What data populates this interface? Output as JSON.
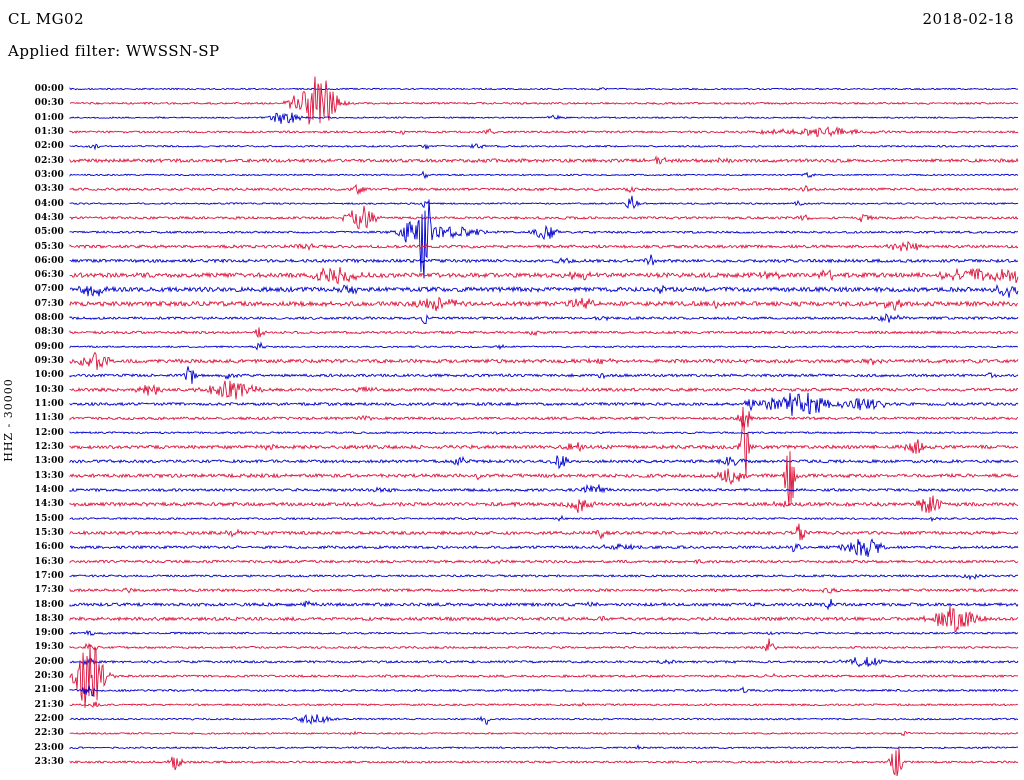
{
  "header": {
    "station": "CL MG02",
    "date": "2018-02-18",
    "filter_label": "Applied filter: WWSSN-SP"
  },
  "y_axis_label": "HHZ - 30000",
  "colors": {
    "blue": "#0000CC",
    "red": "#DC143C",
    "text": "#000000",
    "background": "#FFFFFF"
  },
  "chart_data": {
    "type": "line",
    "title": "Helicorder day plot, station CL MG02, channel HHZ, 2018-02-18, filter WWSSN-SP, scale 30000",
    "xlabel": "",
    "ylabel": "HHZ - 30000",
    "row_duration_minutes": 30,
    "rows_total": 48,
    "grid": false,
    "legend": "none",
    "event_format": [
      "position_fraction_along_row",
      "amplitude_px",
      "width_px"
    ],
    "rows": [
      {
        "label": "00:00",
        "color": "blue",
        "noise": 0.7,
        "events": [
          [
            0.56,
            1.5,
            4
          ]
        ]
      },
      {
        "label": "00:30",
        "color": "red",
        "noise": 0.9,
        "events": [
          [
            0.262,
            30,
            12
          ],
          [
            0.235,
            5,
            5
          ]
        ]
      },
      {
        "label": "01:00",
        "color": "blue",
        "noise": 0.7,
        "events": [
          [
            0.227,
            8,
            9
          ],
          [
            0.512,
            2,
            5
          ]
        ]
      },
      {
        "label": "01:30",
        "color": "red",
        "noise": 1.0,
        "events": [
          [
            0.443,
            3.5,
            4
          ],
          [
            0.79,
            4,
            35
          ],
          [
            0.35,
            2,
            6
          ]
        ]
      },
      {
        "label": "02:00",
        "color": "blue",
        "noise": 0.8,
        "events": [
          [
            0.026,
            2.5,
            4
          ],
          [
            0.374,
            3,
            3
          ],
          [
            0.43,
            2.5,
            5
          ]
        ]
      },
      {
        "label": "02:30",
        "color": "red",
        "noise": 1.6,
        "events": [
          [
            0.62,
            2.5,
            8
          ],
          [
            0.69,
            2,
            6
          ],
          [
            0.45,
            2,
            6
          ]
        ]
      },
      {
        "label": "03:00",
        "color": "blue",
        "noise": 0.7,
        "events": [
          [
            0.374,
            4,
            2
          ],
          [
            0.78,
            2.5,
            4
          ]
        ]
      },
      {
        "label": "03:30",
        "color": "red",
        "noise": 1.2,
        "events": [
          [
            0.306,
            7,
            4
          ],
          [
            0.59,
            2.5,
            5
          ],
          [
            0.775,
            4,
            3
          ]
        ]
      },
      {
        "label": "04:00",
        "color": "blue",
        "noise": 0.8,
        "events": [
          [
            0.593,
            7,
            4
          ],
          [
            0.374,
            5,
            2
          ],
          [
            0.77,
            2.5,
            4
          ]
        ]
      },
      {
        "label": "04:30",
        "color": "red",
        "noise": 1.2,
        "events": [
          [
            0.306,
            14,
            9
          ],
          [
            0.838,
            5,
            5
          ],
          [
            0.775,
            3,
            4
          ]
        ]
      },
      {
        "label": "05:00",
        "color": "blue",
        "noise": 1.0,
        "events": [
          [
            0.357,
            10,
            8
          ],
          [
            0.374,
            90,
            3
          ],
          [
            0.4,
            5,
            25
          ],
          [
            0.501,
            9,
            8
          ]
        ]
      },
      {
        "label": "05:30",
        "color": "red",
        "noise": 1.4,
        "events": [
          [
            0.374,
            3,
            3
          ],
          [
            0.881,
            4.5,
            12
          ],
          [
            0.25,
            2.5,
            8
          ]
        ]
      },
      {
        "label": "06:00",
        "color": "blue",
        "noise": 1.5,
        "events": [
          [
            0.29,
            3,
            6
          ],
          [
            0.612,
            5,
            3
          ],
          [
            0.52,
            2.5,
            6
          ]
        ]
      },
      {
        "label": "06:30",
        "color": "red",
        "noise": 2.2,
        "events": [
          [
            0.28,
            9,
            14
          ],
          [
            0.538,
            4,
            10
          ],
          [
            0.74,
            4,
            8
          ],
          [
            0.8,
            4,
            8
          ],
          [
            0.95,
            6,
            25
          ],
          [
            1.0,
            7,
            12
          ]
        ]
      },
      {
        "label": "07:00",
        "color": "blue",
        "noise": 2.2,
        "events": [
          [
            0.026,
            7,
            9
          ],
          [
            0.295,
            4,
            8
          ],
          [
            0.62,
            3,
            8
          ],
          [
            0.99,
            7,
            10
          ]
        ]
      },
      {
        "label": "07:30",
        "color": "red",
        "noise": 2.2,
        "events": [
          [
            0.385,
            6,
            16
          ],
          [
            0.538,
            6,
            9
          ],
          [
            0.87,
            6,
            8
          ],
          [
            0.68,
            3,
            6
          ]
        ]
      },
      {
        "label": "08:00",
        "color": "blue",
        "noise": 1.2,
        "events": [
          [
            0.374,
            9,
            2
          ],
          [
            0.865,
            4,
            9
          ],
          [
            0.56,
            2.5,
            6
          ]
        ]
      },
      {
        "label": "08:30",
        "color": "red",
        "noise": 1.2,
        "events": [
          [
            0.2,
            5,
            4
          ],
          [
            0.49,
            2,
            5
          ]
        ]
      },
      {
        "label": "09:00",
        "color": "blue",
        "noise": 0.8,
        "events": [
          [
            0.2,
            5,
            3
          ],
          [
            0.454,
            2.5,
            4
          ]
        ]
      },
      {
        "label": "09:30",
        "color": "red",
        "noise": 1.8,
        "events": [
          [
            0.026,
            8,
            11
          ],
          [
            0.56,
            3,
            8
          ],
          [
            0.85,
            3,
            6
          ]
        ]
      },
      {
        "label": "10:00",
        "color": "blue",
        "noise": 1.3,
        "events": [
          [
            0.127,
            10,
            4
          ],
          [
            0.169,
            3,
            6
          ],
          [
            0.56,
            3,
            3
          ],
          [
            0.97,
            3,
            5
          ]
        ]
      },
      {
        "label": "10:30",
        "color": "red",
        "noise": 1.5,
        "events": [
          [
            0.084,
            6,
            8
          ],
          [
            0.169,
            10,
            16
          ],
          [
            0.31,
            3,
            8
          ]
        ]
      },
      {
        "label": "11:00",
        "color": "blue",
        "noise": 1.4,
        "events": [
          [
            0.717,
            5,
            4
          ],
          [
            0.77,
            12,
            22
          ],
          [
            0.84,
            6,
            13
          ]
        ]
      },
      {
        "label": "11:30",
        "color": "red",
        "noise": 1.3,
        "events": [
          [
            0.712,
            14,
            4
          ],
          [
            0.31,
            2.5,
            6
          ]
        ]
      },
      {
        "label": "12:00",
        "color": "blue",
        "noise": 0.9,
        "events": [
          [
            0.45,
            1.5,
            5
          ]
        ]
      },
      {
        "label": "12:30",
        "color": "red",
        "noise": 1.7,
        "events": [
          [
            0.533,
            4,
            6
          ],
          [
            0.712,
            42,
            3
          ],
          [
            0.891,
            9,
            6
          ],
          [
            0.21,
            2.5,
            6
          ]
        ]
      },
      {
        "label": "13:00",
        "color": "blue",
        "noise": 1.4,
        "events": [
          [
            0.411,
            5,
            5
          ],
          [
            0.517,
            7,
            6
          ],
          [
            0.696,
            5,
            8
          ]
        ]
      },
      {
        "label": "13:30",
        "color": "red",
        "noise": 1.7,
        "events": [
          [
            0.696,
            11,
            8
          ],
          [
            0.759,
            45,
            3
          ],
          [
            0.43,
            3,
            6
          ]
        ]
      },
      {
        "label": "14:00",
        "color": "blue",
        "noise": 1.3,
        "events": [
          [
            0.554,
            7,
            7
          ],
          [
            0.33,
            2.5,
            6
          ]
        ]
      },
      {
        "label": "14:30",
        "color": "red",
        "noise": 1.8,
        "events": [
          [
            0.538,
            8,
            8
          ],
          [
            0.907,
            9,
            8
          ],
          [
            0.75,
            3,
            6
          ]
        ]
      },
      {
        "label": "15:00",
        "color": "blue",
        "noise": 0.9,
        "events": [
          [
            0.52,
            2,
            5
          ],
          [
            0.91,
            2,
            4
          ]
        ]
      },
      {
        "label": "15:30",
        "color": "red",
        "noise": 1.6,
        "events": [
          [
            0.17,
            3,
            6
          ],
          [
            0.559,
            5,
            4
          ],
          [
            0.77,
            11,
            3
          ]
        ]
      },
      {
        "label": "16:00",
        "color": "blue",
        "noise": 1.3,
        "events": [
          [
            0.58,
            4,
            13
          ],
          [
            0.765,
            7,
            3
          ],
          [
            0.838,
            11,
            12
          ]
        ]
      },
      {
        "label": "16:30",
        "color": "red",
        "noise": 1.3,
        "events": [
          [
            0.664,
            3,
            4
          ],
          [
            0.45,
            2,
            6
          ]
        ]
      },
      {
        "label": "17:00",
        "color": "blue",
        "noise": 1.0,
        "events": [
          [
            0.949,
            3,
            6
          ]
        ]
      },
      {
        "label": "17:30",
        "color": "red",
        "noise": 1.3,
        "events": [
          [
            0.063,
            2.5,
            5
          ],
          [
            0.802,
            3,
            5
          ]
        ]
      },
      {
        "label": "18:00",
        "color": "blue",
        "noise": 1.5,
        "events": [
          [
            0.25,
            2.5,
            6
          ],
          [
            0.55,
            2.5,
            6
          ],
          [
            0.802,
            6,
            3
          ]
        ]
      },
      {
        "label": "18:30",
        "color": "red",
        "noise": 1.6,
        "events": [
          [
            0.934,
            14,
            14
          ],
          [
            0.56,
            3,
            6
          ]
        ]
      },
      {
        "label": "19:00",
        "color": "blue",
        "noise": 0.9,
        "events": [
          [
            0.021,
            4,
            3
          ],
          [
            0.74,
            2,
            4
          ]
        ]
      },
      {
        "label": "19:30",
        "color": "red",
        "noise": 1.0,
        "events": [
          [
            0.021,
            6,
            4
          ],
          [
            0.738,
            10,
            3
          ]
        ]
      },
      {
        "label": "20:00",
        "color": "blue",
        "noise": 1.1,
        "events": [
          [
            0.021,
            6,
            4
          ],
          [
            0.838,
            5,
            14
          ],
          [
            0.63,
            2,
            5
          ]
        ]
      },
      {
        "label": "20:30",
        "color": "red",
        "noise": 1.1,
        "events": [
          [
            0.021,
            38,
            9
          ],
          [
            0.74,
            2.5,
            4
          ]
        ]
      },
      {
        "label": "21:00",
        "color": "blue",
        "noise": 1.0,
        "events": [
          [
            0.021,
            7,
            5
          ],
          [
            0.712,
            4,
            3
          ]
        ]
      },
      {
        "label": "21:30",
        "color": "red",
        "noise": 0.9,
        "events": [
          [
            0.026,
            4,
            3
          ],
          [
            0.54,
            1.5,
            4
          ]
        ]
      },
      {
        "label": "22:00",
        "color": "blue",
        "noise": 0.8,
        "events": [
          [
            0.258,
            5,
            11
          ],
          [
            0.438,
            7,
            3
          ]
        ]
      },
      {
        "label": "22:30",
        "color": "red",
        "noise": 0.8,
        "events": [
          [
            0.881,
            3,
            3
          ],
          [
            0.3,
            1.5,
            4
          ]
        ]
      },
      {
        "label": "23:00",
        "color": "blue",
        "noise": 0.8,
        "events": [
          [
            0.6,
            1.5,
            4
          ]
        ]
      },
      {
        "label": "23:30",
        "color": "red",
        "noise": 1.0,
        "events": [
          [
            0.111,
            8,
            4
          ],
          [
            0.872,
            18,
            4
          ]
        ]
      }
    ]
  }
}
